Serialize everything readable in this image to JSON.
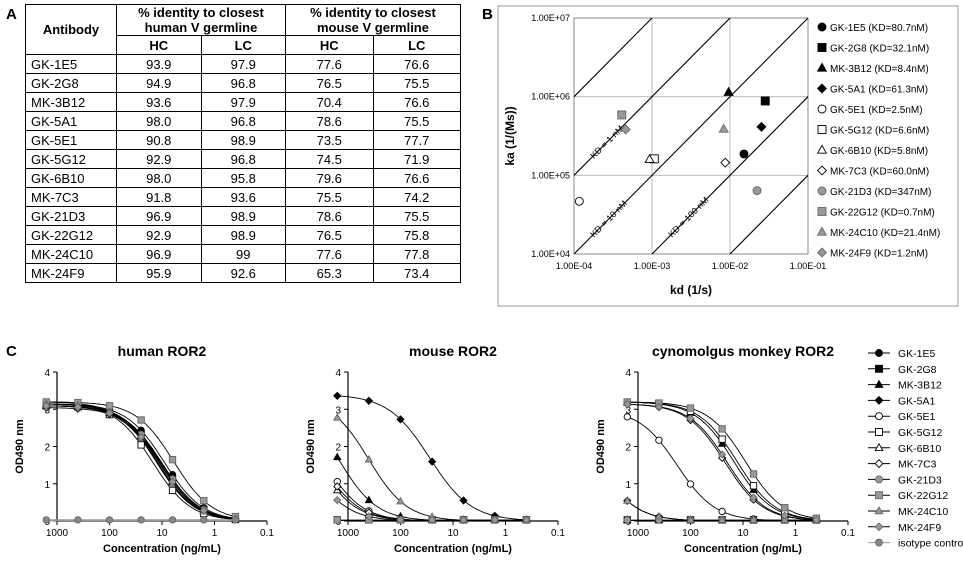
{
  "panels": {
    "a": "A",
    "b": "B",
    "c": "C"
  },
  "table": {
    "col_antibody": "Antibody",
    "col_human": "% identity to closest human V germline",
    "col_mouse": "% identity to closest mouse V germline",
    "sub_hc": "HC",
    "sub_lc": "LC",
    "rows": [
      [
        "GK-1E5",
        "93.9",
        "97.9",
        "77.6",
        "76.6"
      ],
      [
        "GK-2G8",
        "94.9",
        "96.8",
        "76.5",
        "75.5"
      ],
      [
        "MK-3B12",
        "93.6",
        "97.9",
        "70.4",
        "76.6"
      ],
      [
        "GK-5A1",
        "98.0",
        "96.8",
        "78.6",
        "75.5"
      ],
      [
        "GK-5E1",
        "90.8",
        "98.9",
        "73.5",
        "77.7"
      ],
      [
        "GK-5G12",
        "92.9",
        "96.8",
        "74.5",
        "71.9"
      ],
      [
        "GK-6B10",
        "98.0",
        "95.8",
        "79.6",
        "76.6"
      ],
      [
        "MK-7C3",
        "91.8",
        "93.6",
        "75.5",
        "74.2"
      ],
      [
        "GK-21D3",
        "96.9",
        "98.9",
        "78.6",
        "75.5"
      ],
      [
        "GK-22G12",
        "92.9",
        "98.9",
        "76.5",
        "75.8"
      ],
      [
        "MK-24C10",
        "96.9",
        "99",
        "77.6",
        "77.8"
      ],
      [
        "MK-24F9",
        "95.9",
        "92.6",
        "65.3",
        "73.4"
      ]
    ]
  },
  "chart_data": [
    {
      "type": "scatter",
      "title": "",
      "xlabel": "kd (1/s)",
      "ylabel": "ka (1/(Ms))",
      "xscale": "log",
      "yscale": "log",
      "xlim": [
        0.0001,
        0.1
      ],
      "ylim": [
        10000,
        10000000
      ],
      "xticks": [
        "1.00E-04",
        "1.00E-03",
        "1.00E-02",
        "1.00E-01"
      ],
      "yticks": [
        "1.00E+04",
        "1.00E+05",
        "1.00E+06",
        "1.00E+07"
      ],
      "iso_lines": [
        "KD = 1 nM",
        "KD = 10 nM",
        "KD = 100 nM"
      ],
      "points": [
        {
          "name": "GK-1E5",
          "label": "GK-1E5 (KD=80.7nM)",
          "kd": 0.0151,
          "ka": 187000,
          "marker": "circle",
          "fill": "#000"
        },
        {
          "name": "GK-2G8",
          "label": "GK-2G8 (KD=32.1nM)",
          "kd": 0.0283,
          "ka": 882000,
          "marker": "square",
          "fill": "#000"
        },
        {
          "name": "MK-3B12",
          "label": "MK-3B12 (KD=8.4nM)",
          "kd": 0.0096,
          "ka": 1140000,
          "marker": "triangle",
          "fill": "#000"
        },
        {
          "name": "GK-5A1",
          "label": "GK-5A1 (KD=61.3nM)",
          "kd": 0.0253,
          "ka": 413000,
          "marker": "diamond",
          "fill": "#000"
        },
        {
          "name": "GK-5E1",
          "label": "GK-5E1 (KD=2.5nM)",
          "kd": 0.000117,
          "ka": 46800,
          "marker": "circle",
          "fill": "#fff"
        },
        {
          "name": "GK-5G12",
          "label": "GK-5G12 (KD=6.6nM)",
          "kd": 0.00107,
          "ka": 162000,
          "marker": "square",
          "fill": "#fff"
        },
        {
          "name": "GK-6B10",
          "label": "GK-6B10 (KD=5.8nM)",
          "kd": 0.00093,
          "ka": 160000,
          "marker": "triangle",
          "fill": "#fff"
        },
        {
          "name": "MK-7C3",
          "label": "MK-7C3 (KD=60.0nM)",
          "kd": 0.0087,
          "ka": 145000,
          "marker": "diamond",
          "fill": "#fff"
        },
        {
          "name": "GK-21D3",
          "label": "GK-21D3 (KD=347nM)",
          "kd": 0.0222,
          "ka": 64000,
          "marker": "circle",
          "fill": "#999"
        },
        {
          "name": "GK-22G12",
          "label": "GK-22G12 (KD=0.7nM)",
          "kd": 0.00041,
          "ka": 586000,
          "marker": "square",
          "fill": "#999"
        },
        {
          "name": "MK-24C10",
          "label": "MK-24C10 (KD=21.4nM)",
          "kd": 0.0083,
          "ka": 388000,
          "marker": "triangle",
          "fill": "#999"
        },
        {
          "name": "MK-24F9",
          "label": "MK-24F9 (KD=1.2nM)",
          "kd": 0.00046,
          "ka": 383000,
          "marker": "diamond",
          "fill": "#999"
        }
      ]
    },
    {
      "type": "line",
      "panels": [
        {
          "title": "human ROR2",
          "x": [
            1600,
            400,
            100,
            25,
            6.3,
            1.6,
            0.4
          ],
          "series": [
            {
              "name": "GK-1E5",
              "ec50": 9,
              "top": 3.15,
              "hill": 1.2
            },
            {
              "name": "GK-2G8",
              "ec50": 10,
              "top": 3.1,
              "hill": 1.2
            },
            {
              "name": "MK-3B12",
              "ec50": 11,
              "top": 3.15,
              "hill": 1.2
            },
            {
              "name": "GK-5A1",
              "ec50": 12,
              "top": 3.1,
              "hill": 1.2
            },
            {
              "name": "GK-5E1",
              "ec50": 13,
              "top": 3.2,
              "hill": 1.2
            },
            {
              "name": "GK-5G12",
              "ec50": 15,
              "top": 3.15,
              "hill": 1.2
            },
            {
              "name": "GK-6B10",
              "ec50": 11,
              "top": 3.1,
              "hill": 1.2
            },
            {
              "name": "MK-7C3",
              "ec50": 10,
              "top": 3.05,
              "hill": 1.2
            },
            {
              "name": "GK-21D3",
              "ec50": 10,
              "top": 3.1,
              "hill": 1.2
            },
            {
              "name": "GK-22G12",
              "ec50": 6,
              "top": 3.2,
              "hill": 1.2
            },
            {
              "name": "MK-24C10",
              "ec50": 12,
              "top": 3.15,
              "hill": 1.2
            },
            {
              "name": "MK-24F9",
              "ec50": 11,
              "top": 3.1,
              "hill": 1.2
            },
            {
              "name": "isotype control",
              "ec50": 1000000,
              "top": 0.05,
              "hill": 1
            }
          ]
        },
        {
          "title": "mouse ROR2",
          "x": [
            1600,
            400,
            100,
            25,
            6.3,
            1.6,
            0.4
          ],
          "series": [
            {
              "name": "GK-1E5",
              "ec50": 100000,
              "top": 0.03,
              "hill": 1.2
            },
            {
              "name": "GK-2G8",
              "ec50": 100000,
              "top": 0.03,
              "hill": 1.2
            },
            {
              "name": "MK-3B12",
              "ec50": 1500,
              "top": 3.3,
              "hill": 1.2
            },
            {
              "name": "GK-5A1",
              "ec50": 28,
              "top": 3.4,
              "hill": 1.1
            },
            {
              "name": "GK-5E1",
              "ec50": 3000,
              "top": 3.3,
              "hill": 1.2
            },
            {
              "name": "GK-5G12",
              "ec50": 100000,
              "top": 0.03,
              "hill": 1.2
            },
            {
              "name": "GK-6B10",
              "ec50": 4000,
              "top": 3.3,
              "hill": 1.2
            },
            {
              "name": "MK-7C3",
              "ec50": 3500,
              "top": 3.3,
              "hill": 1.2
            },
            {
              "name": "GK-21D3",
              "ec50": 100000,
              "top": 0.03,
              "hill": 1.2
            },
            {
              "name": "GK-22G12",
              "ec50": 100000,
              "top": 0.03,
              "hill": 1.2
            },
            {
              "name": "MK-24C10",
              "ec50": 400,
              "top": 3.3,
              "hill": 1.2
            },
            {
              "name": "MK-24F9",
              "ec50": 6000,
              "top": 3.3,
              "hill": 1.2
            }
          ]
        },
        {
          "title": "cynomolgus monkey ROR2",
          "x": [
            1600,
            400,
            100,
            25,
            6.3,
            1.6,
            0.4
          ],
          "series": [
            {
              "name": "GK-1E5",
              "ec50": 100000,
              "top": 0.05,
              "hill": 1.2
            },
            {
              "name": "GK-2G8",
              "ec50": 100000,
              "top": 0.05,
              "hill": 1.2
            },
            {
              "name": "MK-3B12",
              "ec50": 15,
              "top": 3.2,
              "hill": 1.2
            },
            {
              "name": "GK-5A1",
              "ec50": 6000,
              "top": 3.2,
              "hill": 1.2
            },
            {
              "name": "GK-5E1",
              "ec50": 180,
              "top": 3.0,
              "hill": 1.2
            },
            {
              "name": "GK-5G12",
              "ec50": 13,
              "top": 3.2,
              "hill": 1.2
            },
            {
              "name": "GK-6B10",
              "ec50": 100000,
              "top": 0.05,
              "hill": 1.2
            },
            {
              "name": "MK-7C3",
              "ec50": 22,
              "top": 3.15,
              "hill": 1.2
            },
            {
              "name": "GK-21D3",
              "ec50": 100000,
              "top": 0.05,
              "hill": 1.2
            },
            {
              "name": "GK-22G12",
              "ec50": 9,
              "top": 3.2,
              "hill": 1.2
            },
            {
              "name": "MK-24C10",
              "ec50": 6000,
              "top": 3.2,
              "hill": 1.2
            },
            {
              "name": "MK-24F9",
              "ec50": 20,
              "top": 3.15,
              "hill": 1.2
            }
          ]
        }
      ],
      "xlabel": "Concentration (ng/mL)",
      "ylabel": "OD490 nm",
      "xticks": [
        "1000",
        "100",
        "10",
        "1",
        "0.1"
      ],
      "yticks": [
        "0",
        "1",
        "2",
        "3",
        "4"
      ],
      "xlim": [
        1000,
        0.1
      ],
      "ylim": [
        0,
        4
      ],
      "legend": [
        {
          "name": "GK-1E5",
          "marker": "circle",
          "fill": "#000"
        },
        {
          "name": "GK-2G8",
          "marker": "square",
          "fill": "#000"
        },
        {
          "name": "MK-3B12",
          "marker": "triangle",
          "fill": "#000"
        },
        {
          "name": "GK-5A1",
          "marker": "diamond",
          "fill": "#000"
        },
        {
          "name": "GK-5E1",
          "marker": "circle",
          "fill": "#fff"
        },
        {
          "name": "GK-5G12",
          "marker": "square",
          "fill": "#fff"
        },
        {
          "name": "GK-6B10",
          "marker": "triangle",
          "fill": "#fff"
        },
        {
          "name": "MK-7C3",
          "marker": "diamond",
          "fill": "#fff"
        },
        {
          "name": "GK-21D3",
          "marker": "circle",
          "fill": "#999"
        },
        {
          "name": "GK-22G12",
          "marker": "square",
          "fill": "#999"
        },
        {
          "name": "MK-24C10",
          "marker": "triangle",
          "fill": "#999"
        },
        {
          "name": "MK-24F9",
          "marker": "diamond",
          "fill": "#999"
        },
        {
          "name": "isotype control",
          "marker": "circle",
          "fill": "#888"
        }
      ]
    }
  ]
}
